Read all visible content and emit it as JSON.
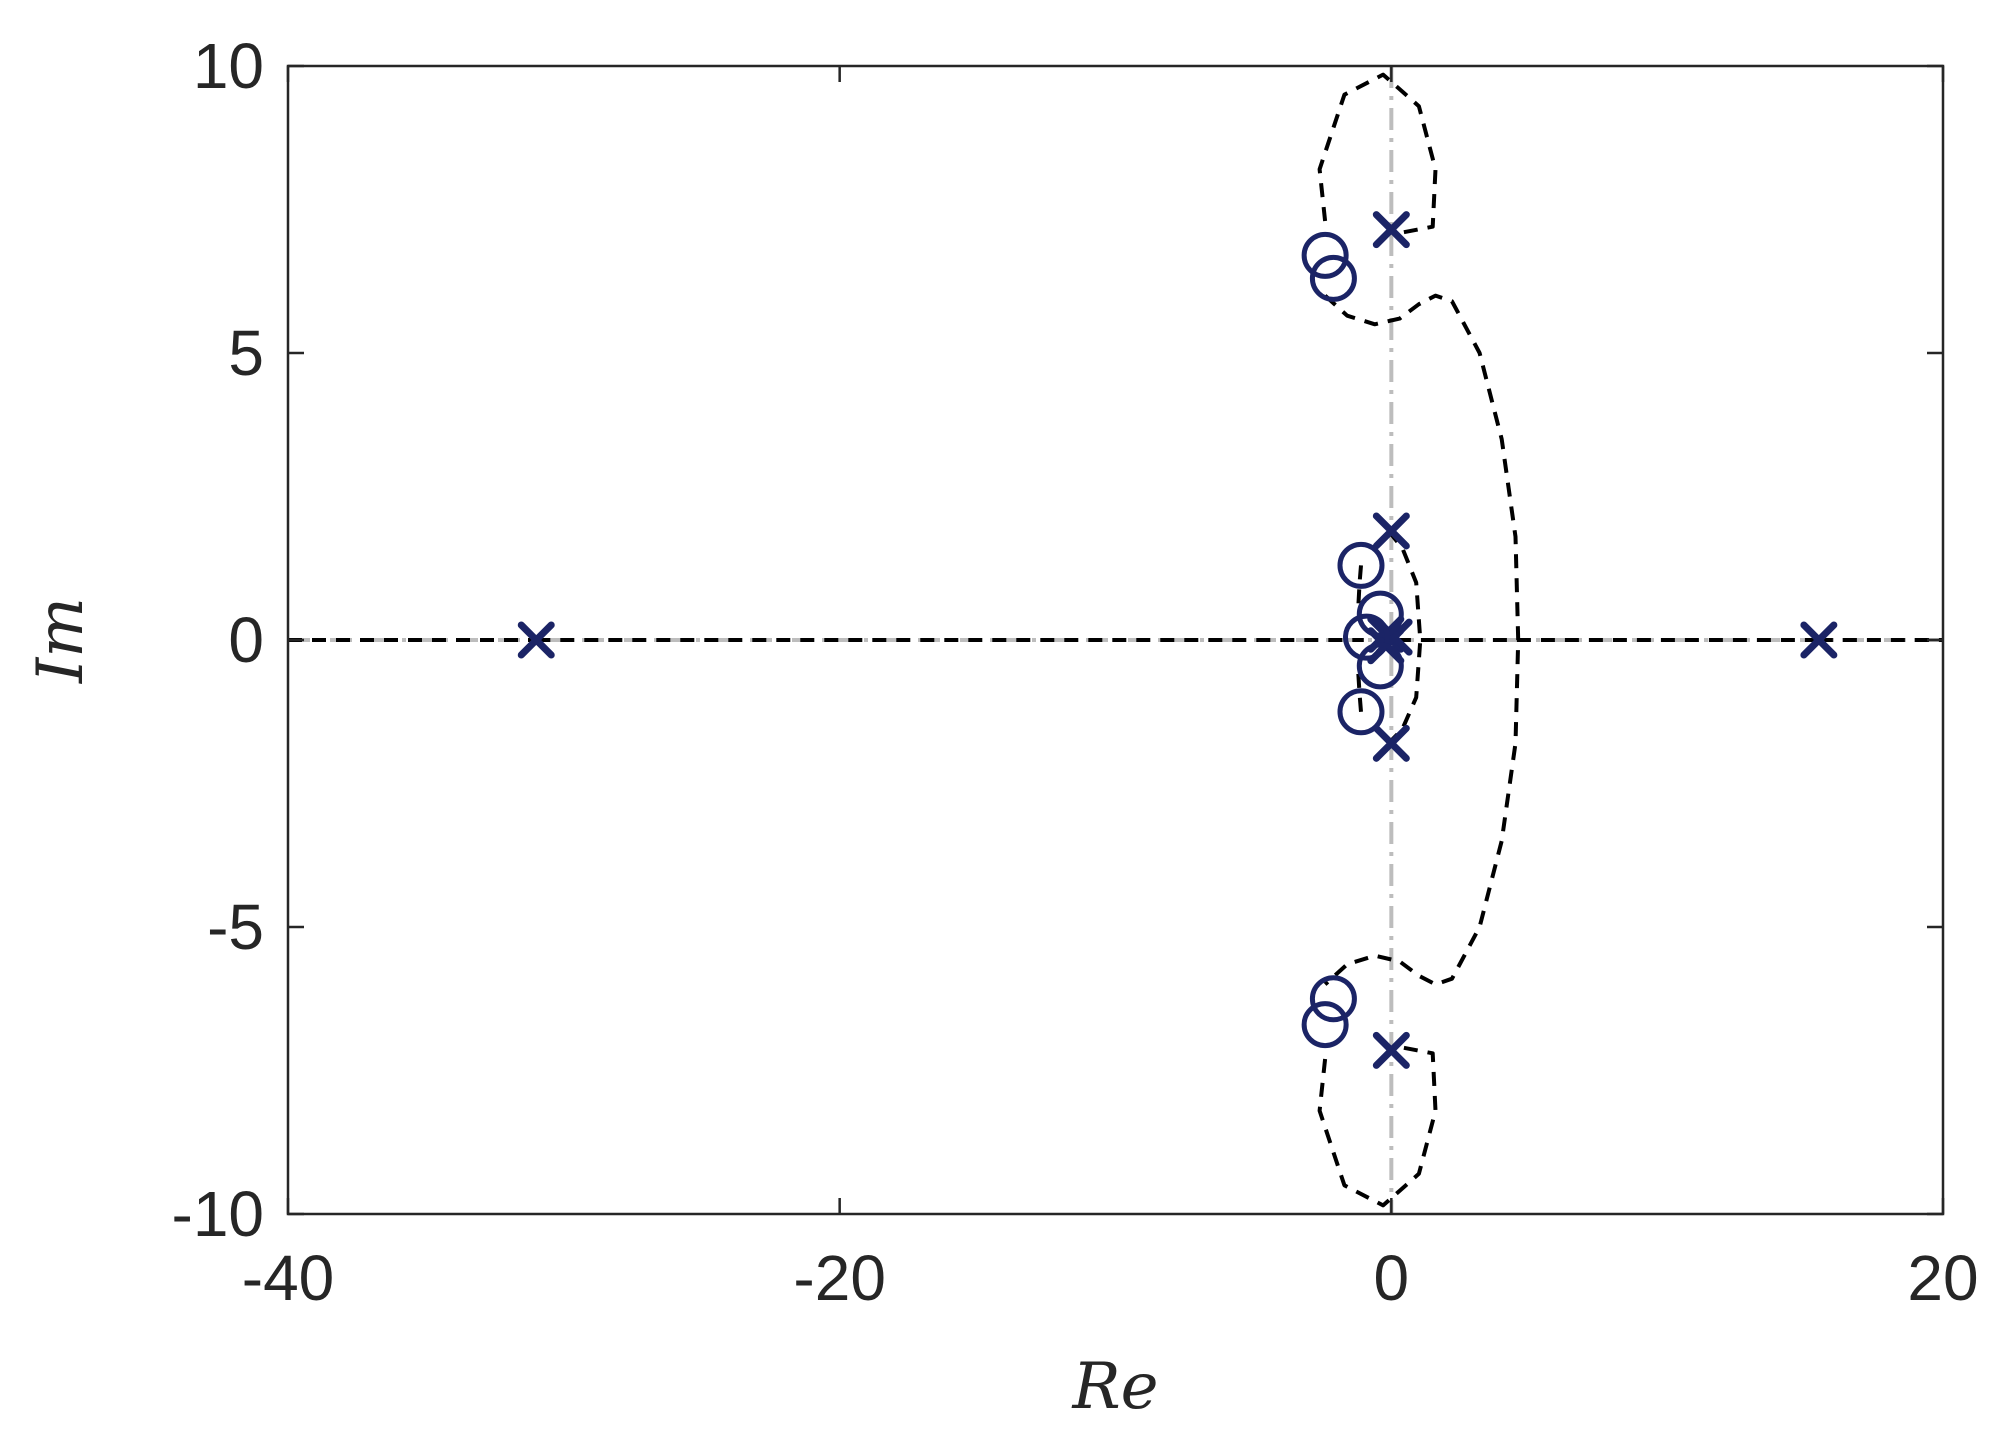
{
  "chart_data": {
    "type": "scatter",
    "title": "",
    "xlabel": "Re",
    "ylabel": "Im",
    "xlim": [
      -40,
      20
    ],
    "ylim": [
      -10,
      10
    ],
    "xticks": [
      -40,
      -20,
      0,
      20
    ],
    "yticks": [
      -10,
      -5,
      0,
      5,
      10
    ],
    "xtick_labels": [
      "-40",
      "-20",
      "0",
      "20"
    ],
    "ytick_labels": [
      "-10",
      "-5",
      "0",
      "5",
      "10"
    ],
    "grid": false,
    "legend": "none",
    "colors": {
      "markers": "#1b2466",
      "locus": "#000000",
      "axes_lines": "#bdbdbd",
      "frame": "#262626"
    },
    "reference_lines": [
      {
        "orientation": "horizontal",
        "value": 0,
        "style": "dash-dot",
        "color": "#bdbdbd"
      },
      {
        "orientation": "vertical",
        "value": 0,
        "style": "dash-dot",
        "color": "#bdbdbd"
      }
    ],
    "series": [
      {
        "marker": "x",
        "points": [
          {
            "x": -31.0,
            "y": 0.0
          },
          {
            "x": 15.5,
            "y": 0.0
          },
          {
            "x": 0.0,
            "y": 7.15
          },
          {
            "x": 0.0,
            "y": -7.15
          },
          {
            "x": 0.0,
            "y": 1.9
          },
          {
            "x": 0.0,
            "y": -1.8
          },
          {
            "x": -0.2,
            "y": 0.1
          },
          {
            "x": -0.2,
            "y": -0.1
          },
          {
            "x": 0.1,
            "y": 0.05
          }
        ]
      },
      {
        "marker": "o",
        "points": [
          {
            "x": -2.4,
            "y": 6.7
          },
          {
            "x": -2.1,
            "y": 6.3
          },
          {
            "x": -2.1,
            "y": -6.25
          },
          {
            "x": -2.4,
            "y": -6.7
          },
          {
            "x": -1.1,
            "y": 1.3
          },
          {
            "x": -1.1,
            "y": -1.25
          },
          {
            "x": -0.4,
            "y": 0.45
          },
          {
            "x": -0.9,
            "y": 0.05
          },
          {
            "x": -0.4,
            "y": -0.45
          }
        ]
      },
      {
        "style": "dashed",
        "line_role": "locus",
        "curves": [
          [
            [
              -2.4,
              7.3
            ],
            [
              -2.6,
              8.2
            ],
            [
              -1.7,
              9.5
            ],
            [
              -0.3,
              9.85
            ],
            [
              1.0,
              9.3
            ],
            [
              1.6,
              8.2
            ],
            [
              1.5,
              7.2
            ],
            [
              0.4,
              7.1
            ]
          ],
          [
            [
              -2.4,
              6.0
            ],
            [
              -1.6,
              5.65
            ],
            [
              -0.6,
              5.5
            ],
            [
              0.3,
              5.6
            ],
            [
              1.0,
              5.85
            ],
            [
              1.6,
              6.0
            ],
            [
              2.2,
              5.9
            ],
            [
              3.2,
              5.0
            ],
            [
              4.0,
              3.5
            ],
            [
              4.5,
              1.8
            ],
            [
              4.6,
              0.0
            ],
            [
              4.5,
              -1.8
            ],
            [
              4.0,
              -3.5
            ],
            [
              3.2,
              -5.0
            ],
            [
              2.2,
              -5.9
            ],
            [
              1.6,
              -6.0
            ],
            [
              1.0,
              -5.85
            ],
            [
              0.3,
              -5.6
            ],
            [
              -0.6,
              -5.5
            ],
            [
              -1.6,
              -5.65
            ],
            [
              -2.4,
              -6.0
            ]
          ],
          [
            [
              -2.4,
              -7.3
            ],
            [
              -2.6,
              -8.2
            ],
            [
              -1.7,
              -9.5
            ],
            [
              -0.3,
              -9.85
            ],
            [
              1.0,
              -9.3
            ],
            [
              1.6,
              -8.2
            ],
            [
              1.5,
              -7.2
            ],
            [
              0.4,
              -7.1
            ]
          ],
          [
            [
              -0.1,
              1.9
            ],
            [
              0.4,
              1.6
            ],
            [
              0.9,
              1.0
            ],
            [
              1.05,
              0.0
            ],
            [
              0.9,
              -1.0
            ],
            [
              0.4,
              -1.55
            ],
            [
              -0.1,
              -1.8
            ]
          ],
          [
            [
              -1.1,
              1.3
            ],
            [
              -1.15,
              1.0
            ],
            [
              -1.2,
              0.55
            ]
          ],
          [
            [
              -1.1,
              -1.25
            ],
            [
              -1.15,
              -0.95
            ],
            [
              -1.2,
              -0.55
            ]
          ],
          [
            [
              -40,
              0
            ],
            [
              -31.0,
              0
            ]
          ],
          [
            [
              -31.0,
              0
            ],
            [
              -1.0,
              0
            ]
          ],
          [
            [
              0.2,
              0
            ],
            [
              15.5,
              0
            ]
          ],
          [
            [
              15.5,
              0
            ],
            [
              20,
              0
            ]
          ]
        ]
      }
    ]
  }
}
